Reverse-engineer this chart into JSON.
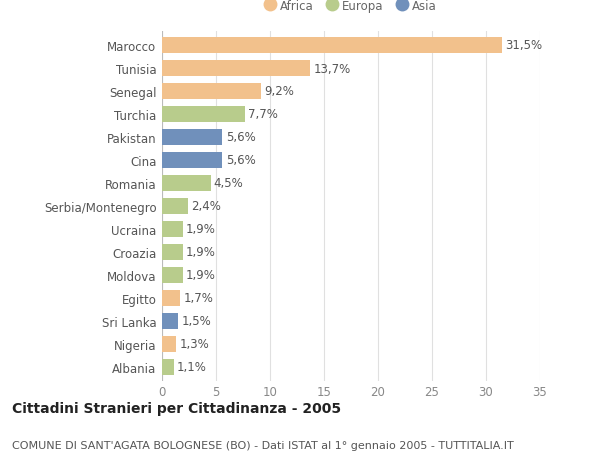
{
  "categories": [
    "Marocco",
    "Tunisia",
    "Senegal",
    "Turchia",
    "Pakistan",
    "Cina",
    "Romania",
    "Serbia/Montenegro",
    "Ucraina",
    "Croazia",
    "Moldova",
    "Egitto",
    "Sri Lanka",
    "Nigeria",
    "Albania"
  ],
  "values": [
    31.5,
    13.7,
    9.2,
    7.7,
    5.6,
    5.6,
    4.5,
    2.4,
    1.9,
    1.9,
    1.9,
    1.7,
    1.5,
    1.3,
    1.1
  ],
  "labels": [
    "31,5%",
    "13,7%",
    "9,2%",
    "7,7%",
    "5,6%",
    "5,6%",
    "4,5%",
    "2,4%",
    "1,9%",
    "1,9%",
    "1,9%",
    "1,7%",
    "1,5%",
    "1,3%",
    "1,1%"
  ],
  "colors": [
    "#f2c18c",
    "#f2c18c",
    "#f2c18c",
    "#b8cc8c",
    "#7090bb",
    "#7090bb",
    "#b8cc8c",
    "#b8cc8c",
    "#b8cc8c",
    "#b8cc8c",
    "#b8cc8c",
    "#f2c18c",
    "#7090bb",
    "#f2c18c",
    "#b8cc8c"
  ],
  "legend_labels": [
    "Africa",
    "Europa",
    "Asia"
  ],
  "legend_colors": [
    "#f2c18c",
    "#b8cc8c",
    "#7090bb"
  ],
  "title_bold": "Cittadini Stranieri per Cittadinanza - 2005",
  "subtitle": "COMUNE DI SANT'AGATA BOLOGNESE (BO) - Dati ISTAT al 1° gennaio 2005 - TUTTITALIA.IT",
  "xlim": [
    0,
    35
  ],
  "xticks": [
    0,
    5,
    10,
    15,
    20,
    25,
    30,
    35
  ],
  "background_color": "#ffffff",
  "grid_color": "#e0e0e0",
  "bar_height": 0.72,
  "label_fontsize": 8.5,
  "tick_fontsize": 8.5,
  "title_fontsize": 10,
  "subtitle_fontsize": 8
}
